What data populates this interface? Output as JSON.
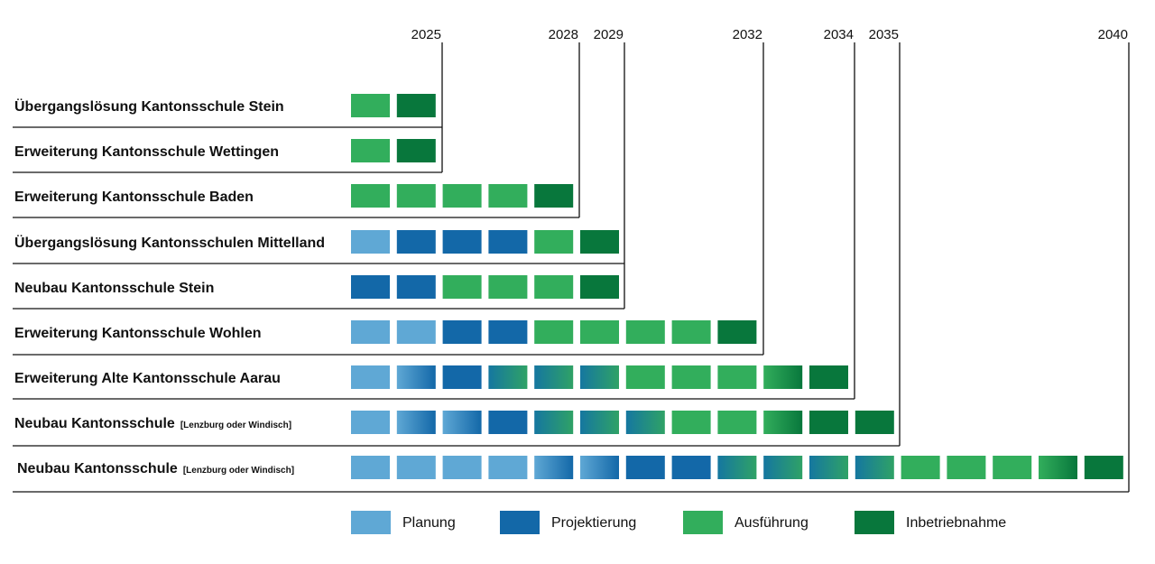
{
  "chart_data": {
    "type": "gantt",
    "phases": [
      {
        "key": "P",
        "name": "Planung",
        "color": "#5fa8d5"
      },
      {
        "key": "J",
        "name": "Projektierung",
        "color": "#1368a8"
      },
      {
        "key": "A",
        "name": "Ausführung",
        "color": "#32ae5c"
      },
      {
        "key": "I",
        "name": "Inbetriebnahme",
        "color": "#08773c"
      }
    ],
    "years": [
      "2025",
      "2028",
      "2029",
      "2032",
      "2034",
      "2035",
      "2040"
    ],
    "rows": [
      {
        "label": "Übergangslösung Kantonsschule Stein",
        "sublabel": "",
        "end_year": "2025",
        "blocks": [
          "A",
          "I"
        ]
      },
      {
        "label": "Erweiterung Kantonsschule Wettingen",
        "sublabel": "",
        "end_year": "2025",
        "blocks": [
          "A",
          "I"
        ]
      },
      {
        "label": "Erweiterung Kantonsschule Baden",
        "sublabel": "",
        "end_year": "2028",
        "blocks": [
          "A",
          "A",
          "A",
          "A",
          "I"
        ]
      },
      {
        "label": "Übergangslösung Kantonsschulen Mittelland",
        "sublabel": "",
        "end_year": "2029",
        "blocks": [
          "P",
          "J",
          "J",
          "J",
          "A",
          "I"
        ]
      },
      {
        "label": "Neubau Kantonsschule Stein",
        "sublabel": "",
        "end_year": "2029",
        "blocks": [
          "J",
          "J",
          "A",
          "A",
          "A",
          "I"
        ]
      },
      {
        "label": "Erweiterung Kantonsschule Wohlen",
        "sublabel": "",
        "end_year": "2032",
        "blocks": [
          "P",
          "P",
          "J",
          "J",
          "A",
          "A",
          "A",
          "A",
          "I"
        ]
      },
      {
        "label": "Erweiterung Alte Kantonsschule Aarau",
        "sublabel": "",
        "end_year": "2034",
        "blocks": [
          "P",
          "P-J",
          "J",
          "J-A",
          "J-A",
          "J-A",
          "A",
          "A",
          "A",
          "A-I",
          "I"
        ]
      },
      {
        "label": "Neubau Kantonsschule",
        "sublabel": "[Lenzburg oder Windisch]",
        "end_year": "2035",
        "blocks": [
          "P",
          "P-J",
          "P-J",
          "J",
          "J-A",
          "J-A",
          "J-A",
          "A",
          "A",
          "A-I",
          "I",
          "I"
        ]
      },
      {
        "label": "Neubau Kantonsschule",
        "sublabel": "[Lenzburg oder Windisch]",
        "end_year": "2040",
        "blocks": [
          "P",
          "P",
          "P",
          "P",
          "P-J",
          "P-J",
          "J",
          "J",
          "J-A",
          "J-A",
          "J-A",
          "J-A",
          "A",
          "A",
          "A",
          "A-I",
          "I"
        ]
      }
    ]
  }
}
